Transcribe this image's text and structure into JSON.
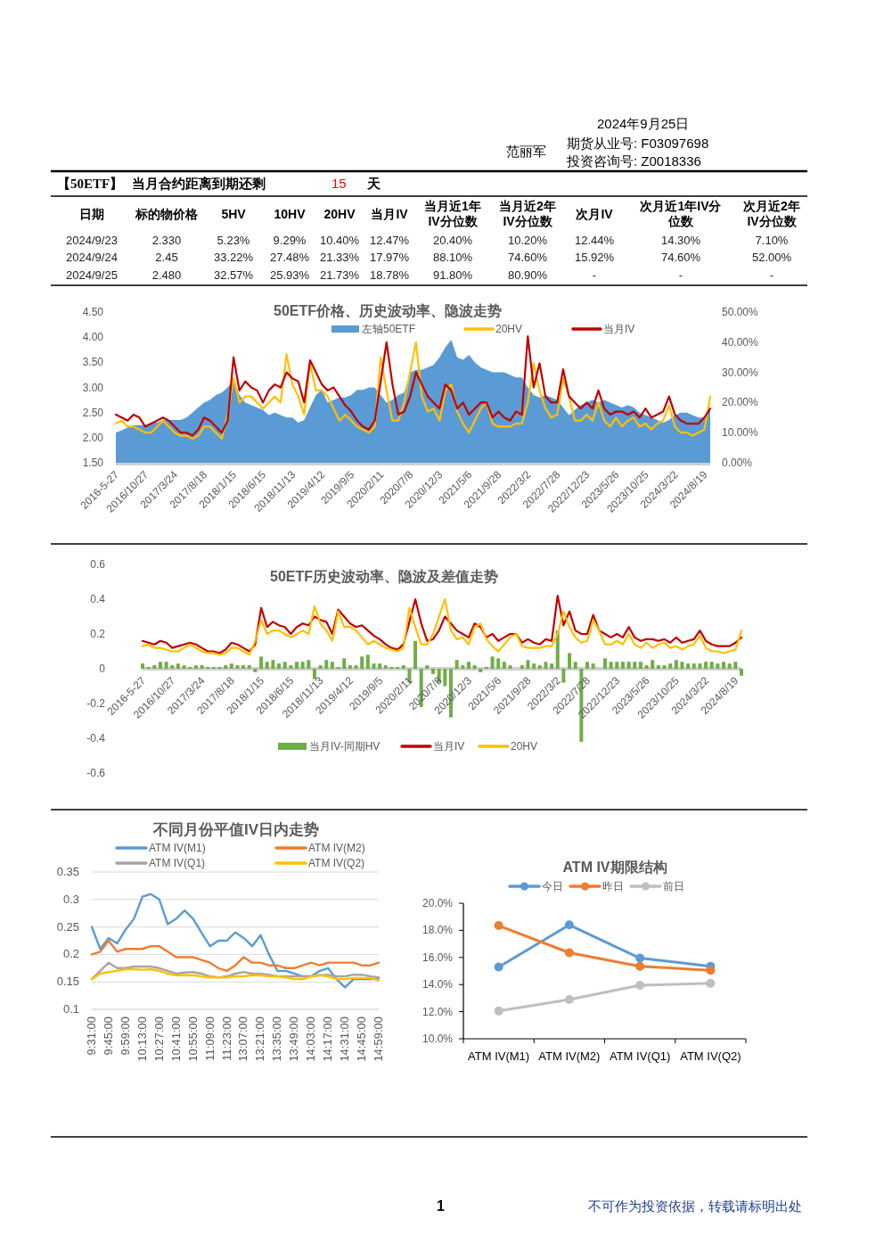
{
  "chart_data": [
    {
      "type": "other",
      "annotations": [
        "2024年9月25日",
        "范丽军",
        "期货从业号: F03097698",
        "投资咨询号: Z0018336",
        "不可作为投资依据，转载请标明出处",
        "1"
      ],
      "colors": [
        "#000000",
        "#000000",
        "#000000",
        "#000000",
        "#1f3f8f",
        "#000000"
      ]
    },
    {
      "type": "other",
      "annotations": [
        "【50ETF】",
        "当月合约距离到期还剩",
        "15",
        "天"
      ],
      "colors": [
        "#000000",
        "#000000",
        "#ff0000",
        "#000000"
      ],
      "categories": [
        "日期",
        "标的物价格",
        "5HV",
        "10HV",
        "20HV",
        "当月IV",
        "当月近1年IV分位数",
        "当月近2年IV分位数",
        "次月IV",
        "次月近1年IV分位数",
        "次月近2年IV分位数"
      ],
      "cell_labels": [
        [
          "2024/9/23",
          "2.330",
          "5.23%",
          "9.29%",
          "10.40%",
          "12.47%",
          "20.40%",
          "10.20%",
          "12.44%",
          "14.30%",
          "7.10%"
        ],
        [
          "2024/9/24",
          "2.45",
          "33.22%",
          "27.48%",
          "21.33%",
          "17.97%",
          "88.10%",
          "74.60%",
          "15.92%",
          "74.60%",
          "52.00%"
        ],
        [
          "2024/9/25",
          "2.480",
          "32.57%",
          "25.93%",
          "21.73%",
          "18.78%",
          "91.80%",
          "80.90%",
          "-",
          "-",
          "-"
        ]
      ]
    },
    {
      "type": "area",
      "title": "50ETF价格、历史波动率、隐波走势",
      "legend": "top",
      "categories": [
        "2016-5-27",
        null,
        null,
        null,
        null,
        "2016/10/27",
        null,
        null,
        null,
        null,
        "2017/3/24",
        null,
        null,
        null,
        null,
        "2017/8/18",
        null,
        null,
        null,
        null,
        "2018/1/15",
        null,
        null,
        null,
        null,
        "2018/6/15",
        null,
        null,
        null,
        null,
        "2018/11/13",
        null,
        null,
        null,
        null,
        "2019/4/12",
        null,
        null,
        null,
        null,
        "2019/9/5",
        null,
        null,
        null,
        null,
        "2020/2/11",
        null,
        null,
        null,
        null,
        "2020/7/8",
        null,
        null,
        null,
        null,
        "2020/12/3",
        null,
        null,
        null,
        null,
        "2021/5/6",
        null,
        null,
        null,
        null,
        "2021/9/28",
        null,
        null,
        null,
        null,
        "2022/3/2",
        null,
        null,
        null,
        null,
        "2022/7/28",
        null,
        null,
        null,
        null,
        "2022/12/23",
        null,
        null,
        null,
        null,
        "2023/5/26",
        null,
        null,
        null,
        null,
        "2023/10/25",
        null,
        null,
        null,
        null,
        "2024/3/22",
        null,
        null,
        null,
        null,
        "2024/8/19",
        null
      ],
      "ylim": [
        1.5,
        4.5
      ],
      "yticks": [
        {
          "value": 1.5,
          "label": "1.50"
        },
        {
          "value": 2,
          "label": "2.00"
        },
        {
          "value": 2.5,
          "label": "2.50"
        },
        {
          "value": 3,
          "label": "3.00"
        },
        {
          "value": 3.5,
          "label": "3.50"
        },
        {
          "value": 4,
          "label": "4.00"
        },
        {
          "value": 4.5,
          "label": "4.50"
        }
      ],
      "y2lim": [
        0,
        50
      ],
      "y2ticks": [
        {
          "value": 0,
          "label": "0.00%"
        },
        {
          "value": 10,
          "label": "10.00%"
        },
        {
          "value": 20,
          "label": "20.00%"
        },
        {
          "value": 30,
          "label": "30.00%"
        },
        {
          "value": 40,
          "label": "40.00%"
        },
        {
          "value": 50,
          "label": "50.00%"
        }
      ],
      "series": [
        {
          "name": "左轴50ETF",
          "type": "area",
          "color": "#5b9bd5",
          "values": [
            2.1,
            2.15,
            2.2,
            2.25,
            2.25,
            2.25,
            2.3,
            2.3,
            2.35,
            2.35,
            2.35,
            2.35,
            2.4,
            2.5,
            2.6,
            2.7,
            2.75,
            2.85,
            2.9,
            3.0,
            3.15,
            2.85,
            2.7,
            2.65,
            2.6,
            2.55,
            2.45,
            2.5,
            2.45,
            2.4,
            2.4,
            2.3,
            2.35,
            2.6,
            2.85,
            2.95,
            2.7,
            2.75,
            2.8,
            2.8,
            2.85,
            2.95,
            2.95,
            3.0,
            3.0,
            2.85,
            2.7,
            2.75,
            2.85,
            2.9,
            3.3,
            3.35,
            3.35,
            3.4,
            3.45,
            3.6,
            3.8,
            3.95,
            3.6,
            3.55,
            3.65,
            3.5,
            3.4,
            3.35,
            3.3,
            3.3,
            3.3,
            3.25,
            3.2,
            3.2,
            3.0,
            2.85,
            2.8,
            2.85,
            2.8,
            2.75,
            2.6,
            2.45,
            2.55,
            2.65,
            2.7,
            2.75,
            2.7,
            2.75,
            2.7,
            2.65,
            2.6,
            2.65,
            2.6,
            2.5,
            2.45,
            2.4,
            2.35,
            2.3,
            2.35,
            2.45,
            2.5,
            2.5,
            2.45,
            2.4,
            2.4,
            2.55
          ]
        },
        {
          "name": "20HV",
          "type": "line",
          "axis": "y2",
          "color": "#ffc000",
          "values": [
            13,
            14,
            12,
            12,
            11,
            10,
            10,
            12,
            14,
            12,
            10,
            9,
            9,
            8,
            9,
            12,
            12,
            10,
            8,
            16,
            28,
            20,
            22,
            22,
            20,
            18,
            20,
            22,
            20,
            36,
            26,
            22,
            16,
            33,
            24,
            24,
            22,
            18,
            14,
            16,
            14,
            12,
            11,
            10,
            12,
            35,
            24,
            14,
            14,
            20,
            30,
            40,
            22,
            17,
            18,
            14,
            24,
            26,
            17,
            13,
            10,
            14,
            18,
            20,
            13,
            12,
            12,
            12,
            13,
            13,
            20,
            33,
            24,
            18,
            15,
            16,
            28,
            22,
            14,
            14,
            16,
            14,
            20,
            14,
            12,
            15,
            12,
            14,
            15,
            12,
            13,
            11,
            13,
            14,
            19,
            12,
            10,
            10,
            9,
            10,
            11,
            22
          ]
        },
        {
          "name": "当月IV",
          "type": "line",
          "axis": "y2",
          "color": "#c00000",
          "values": [
            16,
            15,
            14,
            16,
            15,
            12,
            13,
            14,
            15,
            14,
            12,
            10,
            10,
            9,
            11,
            15,
            14,
            12,
            10,
            14,
            35,
            24,
            27,
            25,
            24,
            20,
            24,
            26,
            25,
            30,
            28,
            27,
            20,
            34,
            30,
            26,
            24,
            25,
            22,
            19,
            17,
            14,
            12,
            11,
            14,
            27,
            40,
            26,
            16,
            17,
            22,
            30,
            26,
            22,
            20,
            18,
            26,
            24,
            18,
            20,
            16,
            18,
            20,
            20,
            15,
            17,
            15,
            14,
            17,
            16,
            42,
            25,
            33,
            22,
            20,
            20,
            31,
            22,
            20,
            18,
            20,
            18,
            24,
            18,
            16,
            17,
            17,
            16,
            17,
            15,
            18,
            15,
            16,
            17,
            22,
            16,
            14,
            13,
            13,
            13,
            15,
            18
          ]
        }
      ]
    },
    {
      "type": "bar",
      "title": "50ETF历史波动率、隐波及差值走势",
      "legend": "bottom",
      "categories": [
        "2016-5-27",
        null,
        null,
        null,
        null,
        "2016/10/27",
        null,
        null,
        null,
        null,
        "2017/3/24",
        null,
        null,
        null,
        null,
        "2017/8/18",
        null,
        null,
        null,
        null,
        "2018/1/15",
        null,
        null,
        null,
        null,
        "2018/6/15",
        null,
        null,
        null,
        null,
        "2018/11/13",
        null,
        null,
        null,
        null,
        "2019/4/12",
        null,
        null,
        null,
        null,
        "2019/9/5",
        null,
        null,
        null,
        null,
        "2020/2/11",
        null,
        null,
        null,
        null,
        "2020/7/8",
        null,
        null,
        null,
        null,
        "2020/12/3",
        null,
        null,
        null,
        null,
        "2021/5/6",
        null,
        null,
        null,
        null,
        "2021/9/28",
        null,
        null,
        null,
        null,
        "2022/3/2",
        null,
        null,
        null,
        null,
        "2022/7/28",
        null,
        null,
        null,
        null,
        "2022/12/23",
        null,
        null,
        null,
        null,
        "2023/5/26",
        null,
        null,
        null,
        null,
        "2023/10/25",
        null,
        null,
        null,
        null,
        "2024/3/22",
        null,
        null,
        null,
        null,
        "2024/8/19",
        null
      ],
      "ylim": [
        -0.6,
        0.6
      ],
      "yticks": [
        -0.6,
        -0.4,
        -0.2,
        0,
        0.2,
        0.4,
        0.6
      ],
      "series": [
        {
          "name": "当月IV-同期HV",
          "type": "bar",
          "color": "#70ad47",
          "values": [
            0.03,
            0.01,
            0.02,
            0.04,
            0.04,
            0.02,
            0.03,
            0.02,
            0.01,
            0.02,
            0.02,
            0.01,
            0.01,
            0.01,
            0.02,
            0.03,
            0.02,
            0.02,
            0.02,
            -0.02,
            0.07,
            0.04,
            0.05,
            0.03,
            0.04,
            0.02,
            0.04,
            0.04,
            0.05,
            -0.06,
            0.02,
            0.05,
            0.04,
            0.01,
            0.06,
            0.02,
            0.02,
            0.07,
            0.08,
            0.03,
            0.03,
            0.02,
            0.01,
            0.01,
            0.02,
            -0.08,
            0.16,
            -0.22,
            0.02,
            -0.03,
            -0.08,
            -0.1,
            -0.28,
            0.05,
            0.02,
            0.04,
            0.02,
            -0.02,
            0.01,
            0.07,
            0.06,
            0.04,
            0.02,
            0,
            0.02,
            0.05,
            0.03,
            0.02,
            0.04,
            0.03,
            0.22,
            -0.08,
            0.09,
            0.04,
            -0.42,
            0.04,
            0.03,
            0,
            0.06,
            0.04,
            0.04,
            0.04,
            0.04,
            0.04,
            0.04,
            0.02,
            0.05,
            0.02,
            0.02,
            0.03,
            0.05,
            0.04,
            0.03,
            0.03,
            0.03,
            0.04,
            0.04,
            0.03,
            0.04,
            0.03,
            0.04,
            -0.04
          ]
        },
        {
          "name": "当月IV",
          "type": "line",
          "color": "#c00000",
          "values": [
            0.16,
            0.15,
            0.14,
            0.16,
            0.15,
            0.12,
            0.13,
            0.14,
            0.15,
            0.14,
            0.12,
            0.1,
            0.1,
            0.09,
            0.11,
            0.15,
            0.14,
            0.12,
            0.1,
            0.14,
            0.35,
            0.24,
            0.27,
            0.25,
            0.24,
            0.2,
            0.24,
            0.26,
            0.25,
            0.3,
            0.28,
            0.27,
            0.2,
            0.34,
            0.3,
            0.26,
            0.24,
            0.25,
            0.22,
            0.19,
            0.17,
            0.14,
            0.12,
            0.11,
            0.14,
            0.27,
            0.4,
            0.26,
            0.16,
            0.17,
            0.22,
            0.3,
            0.26,
            0.22,
            0.2,
            0.18,
            0.26,
            0.24,
            0.18,
            0.2,
            0.16,
            0.18,
            0.2,
            0.2,
            0.15,
            0.17,
            0.15,
            0.14,
            0.17,
            0.16,
            0.42,
            0.25,
            0.33,
            0.22,
            0.2,
            0.2,
            0.31,
            0.22,
            0.2,
            0.18,
            0.2,
            0.18,
            0.24,
            0.18,
            0.16,
            0.17,
            0.17,
            0.16,
            0.17,
            0.15,
            0.18,
            0.15,
            0.16,
            0.17,
            0.22,
            0.16,
            0.14,
            0.13,
            0.13,
            0.13,
            0.15,
            0.18
          ]
        },
        {
          "name": "20HV",
          "type": "line",
          "color": "#ffc000",
          "values": [
            0.13,
            0.14,
            0.12,
            0.12,
            0.11,
            0.1,
            0.1,
            0.12,
            0.14,
            0.12,
            0.1,
            0.09,
            0.09,
            0.08,
            0.09,
            0.12,
            0.12,
            0.1,
            0.08,
            0.16,
            0.28,
            0.2,
            0.22,
            0.22,
            0.2,
            0.18,
            0.2,
            0.22,
            0.2,
            0.36,
            0.26,
            0.22,
            0.16,
            0.33,
            0.24,
            0.24,
            0.22,
            0.18,
            0.14,
            0.16,
            0.14,
            0.12,
            0.11,
            0.1,
            0.12,
            0.35,
            0.24,
            0.14,
            0.14,
            0.2,
            0.3,
            0.4,
            0.22,
            0.17,
            0.18,
            0.14,
            0.24,
            0.26,
            0.17,
            0.13,
            0.1,
            0.14,
            0.18,
            0.2,
            0.13,
            0.12,
            0.12,
            0.12,
            0.13,
            0.13,
            0.2,
            0.33,
            0.24,
            0.18,
            0.15,
            0.16,
            0.28,
            0.22,
            0.14,
            0.14,
            0.16,
            0.14,
            0.2,
            0.14,
            0.12,
            0.15,
            0.12,
            0.14,
            0.15,
            0.12,
            0.13,
            0.11,
            0.13,
            0.14,
            0.19,
            0.12,
            0.1,
            0.1,
            0.09,
            0.1,
            0.11,
            0.22
          ]
        }
      ]
    },
    {
      "type": "line",
      "title": "不同月份平值IV日内走势",
      "legend": "top",
      "grid": "y",
      "categories": [
        "9:31:00",
        null,
        "9:45:00",
        null,
        "9:59:00",
        null,
        "10:13:00",
        null,
        "10:27:00",
        null,
        "10:41:00",
        null,
        "10:55:00",
        null,
        "11:09:00",
        null,
        "11:23:00",
        null,
        "13:07:00",
        null,
        "13:21:00",
        null,
        "13:35:00",
        null,
        "13:49:00",
        null,
        "14:03:00",
        null,
        "14:17:00",
        null,
        "14:31:00",
        null,
        "14:45:00",
        null,
        "14:59:00"
      ],
      "ylim": [
        0.1,
        0.35
      ],
      "yticks": [
        0.1,
        0.15,
        0.2,
        0.25,
        0.3,
        0.35
      ],
      "series": [
        {
          "name": "ATM IV(M1)",
          "color": "#5b9bd5",
          "values": [
            0.25,
            0.21,
            0.23,
            0.22,
            0.245,
            0.265,
            0.305,
            0.31,
            0.3,
            0.255,
            0.265,
            0.28,
            0.265,
            0.24,
            0.215,
            0.225,
            0.225,
            0.24,
            0.23,
            0.215,
            0.235,
            0.2,
            0.17,
            0.17,
            0.165,
            0.16,
            0.16,
            0.17,
            0.175,
            0.155,
            0.14,
            0.155,
            0.155,
            0.155,
            0.155
          ]
        },
        {
          "name": "ATM IV(M2)",
          "color": "#ed7d31",
          "values": [
            0.2,
            0.205,
            0.225,
            0.205,
            0.21,
            0.21,
            0.21,
            0.215,
            0.215,
            0.205,
            0.195,
            0.195,
            0.195,
            0.19,
            0.185,
            0.175,
            0.17,
            0.18,
            0.195,
            0.185,
            0.185,
            0.18,
            0.18,
            0.175,
            0.175,
            0.18,
            0.185,
            0.18,
            0.185,
            0.185,
            0.185,
            0.185,
            0.18,
            0.18,
            0.185
          ]
        },
        {
          "name": "ATM IV(Q1)",
          "color": "#a5a5a5",
          "values": [
            0.155,
            0.17,
            0.185,
            0.175,
            0.175,
            0.178,
            0.178,
            0.178,
            0.175,
            0.17,
            0.165,
            0.167,
            0.168,
            0.165,
            0.16,
            0.158,
            0.16,
            0.165,
            0.168,
            0.165,
            0.165,
            0.163,
            0.16,
            0.16,
            0.16,
            0.16,
            0.16,
            0.162,
            0.163,
            0.16,
            0.16,
            0.163,
            0.163,
            0.16,
            0.158
          ]
        },
        {
          "name": "ATM IV(Q2)",
          "color": "#ffc000",
          "values": [
            0.155,
            0.165,
            0.168,
            0.17,
            0.173,
            0.173,
            0.172,
            0.173,
            0.17,
            0.165,
            0.162,
            0.162,
            0.162,
            0.16,
            0.158,
            0.158,
            0.158,
            0.16,
            0.16,
            0.162,
            0.162,
            0.16,
            0.16,
            0.158,
            0.155,
            0.155,
            0.16,
            0.162,
            0.16,
            0.155,
            0.155,
            0.157,
            0.157,
            0.157,
            0.153
          ]
        }
      ]
    },
    {
      "type": "line",
      "title": "ATM IV期限结构",
      "legend": "top",
      "marker": "circle",
      "categories": [
        "ATM IV(M1)",
        "ATM IV(M2)",
        "ATM IV(Q1)",
        "ATM IV(Q2)"
      ],
      "ylim": [
        10,
        20
      ],
      "yticks": [
        {
          "value": 10,
          "label": "10.0%"
        },
        {
          "value": 12,
          "label": "12.0%"
        },
        {
          "value": 14,
          "label": "14.0%"
        },
        {
          "value": 16,
          "label": "16.0%"
        },
        {
          "value": 18,
          "label": "18.0%"
        },
        {
          "value": 20,
          "label": "20.0%"
        }
      ],
      "series": [
        {
          "name": "今日",
          "color": "#5b9bd5",
          "values": [
            15.3,
            18.4,
            15.95,
            15.35
          ]
        },
        {
          "name": "昨日",
          "color": "#ed7d31",
          "values": [
            18.35,
            16.35,
            15.35,
            15.05
          ]
        },
        {
          "name": "前日",
          "color": "#bfbfbf",
          "values": [
            12.05,
            12.9,
            13.95,
            14.1
          ]
        }
      ]
    }
  ]
}
